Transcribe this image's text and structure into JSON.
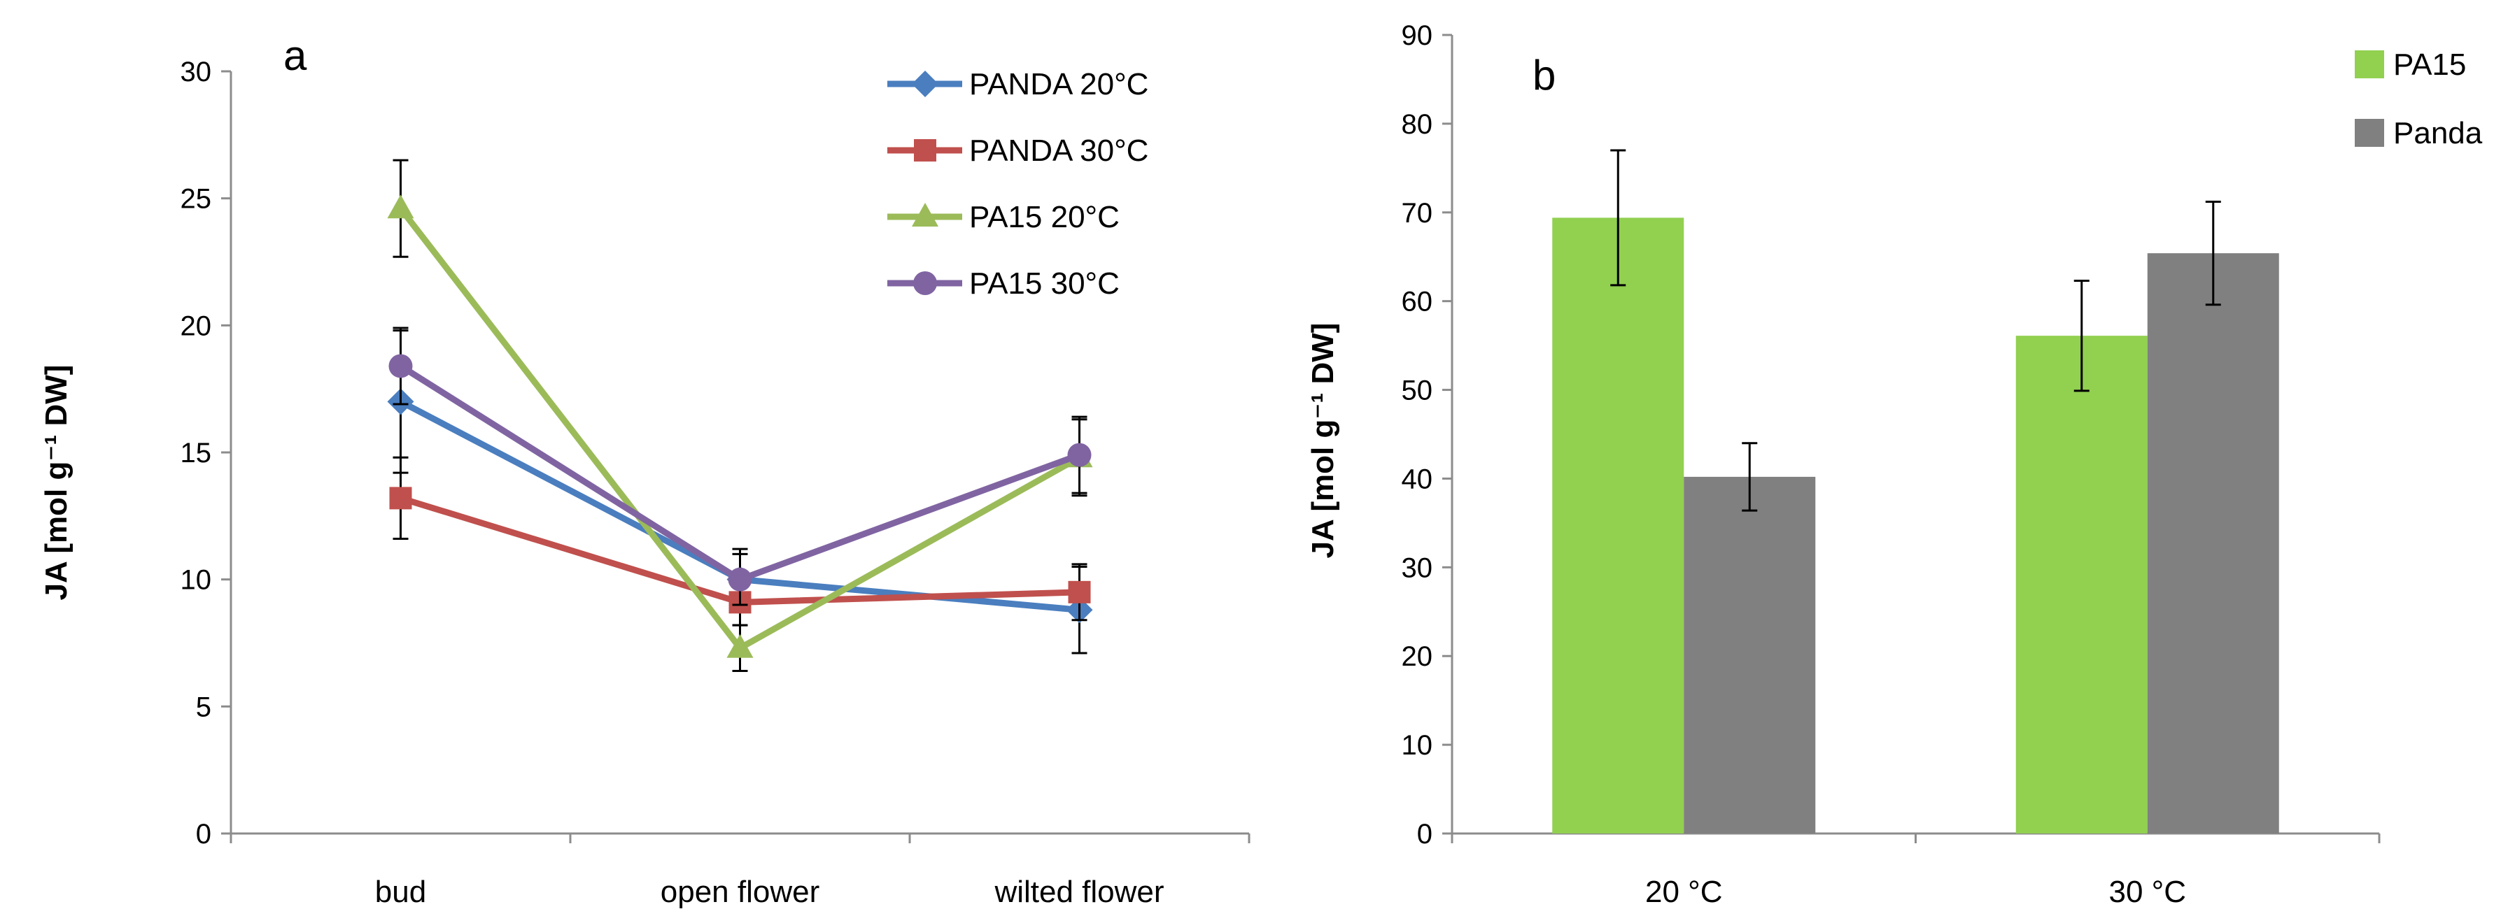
{
  "chart_data": [
    {
      "type": "line",
      "panel_label": "a",
      "ylabel": "JA [mol g⁻¹ DW]",
      "ylim": [
        0,
        30
      ],
      "yticks": [
        "0",
        "5",
        "10",
        "15",
        "20",
        "25",
        "30"
      ],
      "categories": [
        "bud",
        "open flower",
        "wilted flower"
      ],
      "legend_position": "top-right",
      "series": [
        {
          "name": "PANDA 20°C",
          "color": "#4a7ebf",
          "marker": "diamond",
          "values": [
            17.0,
            10.0,
            8.8
          ],
          "errors": [
            2.8,
            1.2,
            1.7
          ]
        },
        {
          "name": "PANDA 30°C",
          "color": "#c0504d",
          "marker": "square",
          "values": [
            13.2,
            9.1,
            9.5
          ],
          "errors": [
            1.6,
            0.9,
            1.1
          ]
        },
        {
          "name": "PA15 20°C",
          "color": "#9bbb59",
          "marker": "triangle",
          "values": [
            24.6,
            7.3,
            14.8
          ],
          "errors": [
            1.9,
            0.9,
            1.5
          ]
        },
        {
          "name": "PA15 30°C",
          "color": "#8064a2",
          "marker": "circle",
          "values": [
            18.4,
            10.0,
            14.9
          ],
          "errors": [
            1.5,
            1.0,
            1.5
          ]
        }
      ]
    },
    {
      "type": "bar",
      "panel_label": "b",
      "ylabel": "JA [mol g⁻¹ DW]",
      "ylim": [
        0,
        90
      ],
      "yticks": [
        "0",
        "10",
        "20",
        "30",
        "40",
        "50",
        "60",
        "70",
        "80",
        "90"
      ],
      "categories": [
        "20 °C",
        "30 °C"
      ],
      "legend_position": "top-right",
      "series": [
        {
          "name": "PA15",
          "color": "#92d050",
          "values": [
            69.4,
            56.1
          ],
          "errors": [
            7.6,
            6.2
          ]
        },
        {
          "name": "Panda",
          "color": "#808080",
          "values": [
            40.2,
            65.4
          ],
          "errors": [
            3.8,
            5.8
          ]
        }
      ]
    }
  ]
}
